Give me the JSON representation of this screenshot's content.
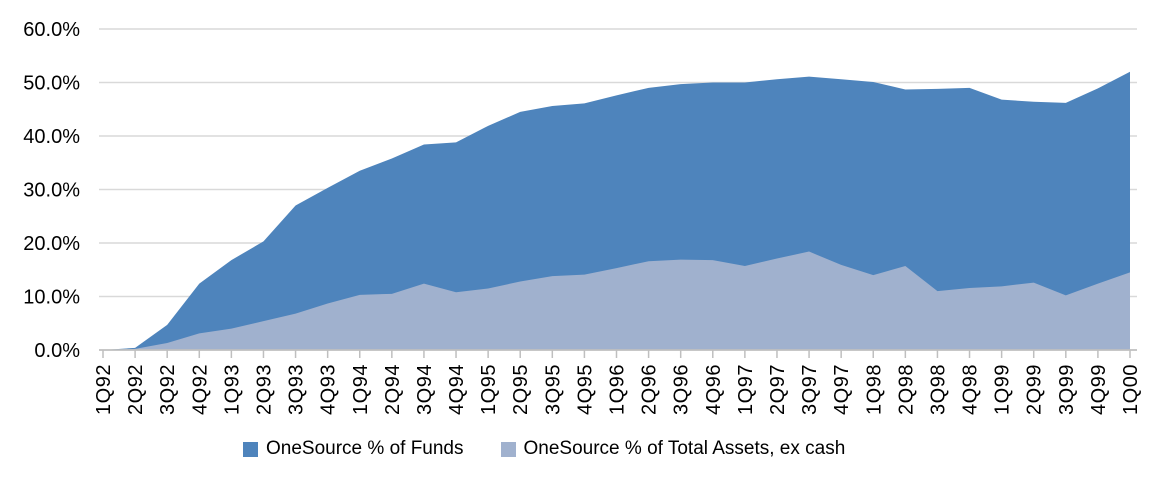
{
  "chart_data": {
    "type": "area",
    "mode": "overlapping",
    "title": "",
    "xlabel": "",
    "ylabel": "",
    "categories": [
      "1Q92",
      "2Q92",
      "3Q92",
      "4Q92",
      "1Q93",
      "2Q93",
      "3Q93",
      "4Q93",
      "1Q94",
      "2Q94",
      "3Q94",
      "4Q94",
      "1Q95",
      "2Q95",
      "3Q95",
      "4Q95",
      "1Q96",
      "2Q96",
      "3Q96",
      "4Q96",
      "1Q97",
      "2Q97",
      "3Q97",
      "4Q97",
      "1Q98",
      "2Q98",
      "3Q98",
      "4Q98",
      "1Q99",
      "2Q99",
      "3Q99",
      "4Q99",
      "1Q00"
    ],
    "series": [
      {
        "name": "OneSource % of Funds",
        "color": "#4E84BC",
        "values": [
          0.0,
          0.4,
          4.7,
          12.4,
          16.8,
          20.3,
          27.0,
          30.3,
          33.5,
          35.8,
          38.4,
          38.8,
          41.9,
          44.5,
          45.6,
          46.1,
          47.6,
          49.0,
          49.7,
          50.0,
          50.0,
          50.6,
          51.1,
          50.6,
          50.1,
          48.7,
          48.8,
          49.0,
          46.8,
          46.4,
          46.2,
          48.9,
          52.0
        ]
      },
      {
        "name": "OneSource % of Total Assets, ex cash",
        "color": "#A0B1CE",
        "values": [
          0.0,
          0.2,
          1.3,
          3.1,
          4.0,
          5.4,
          6.8,
          8.7,
          10.3,
          10.5,
          12.4,
          10.8,
          11.5,
          12.8,
          13.8,
          14.1,
          15.3,
          16.6,
          16.9,
          16.8,
          15.7,
          17.1,
          18.4,
          15.9,
          14.0,
          15.7,
          11.0,
          11.6,
          11.9,
          12.6,
          10.2,
          12.4,
          14.5
        ]
      }
    ],
    "ylim": [
      0,
      60
    ],
    "ytick_step": 10,
    "ytick_labels": [
      "0.0%",
      "10.0%",
      "20.0%",
      "30.0%",
      "40.0%",
      "50.0%",
      "60.0%"
    ],
    "grid": "horizontal",
    "legend_position": "bottom",
    "colors": {
      "gridline": "#D9D9D9",
      "axis": "#BFBFBF",
      "tick_text": "#000000"
    }
  }
}
